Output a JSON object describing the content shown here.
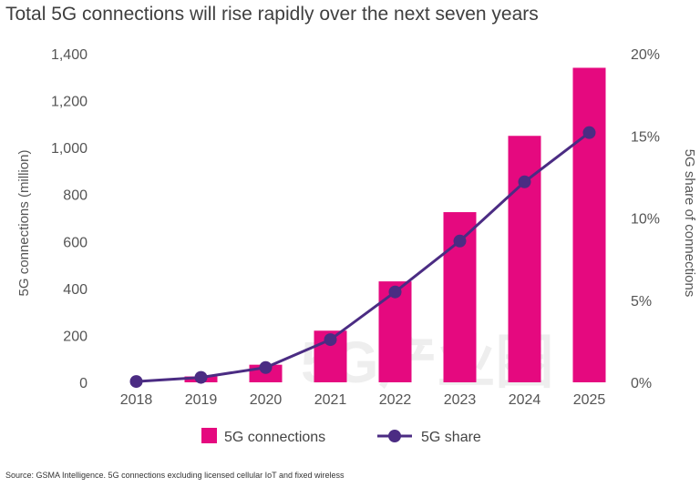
{
  "title": "Total 5G connections will rise rapidly over the next seven years",
  "source": "Source: GSMA Intelligence. 5G connections excluding licensed cellular IoT and fixed wireless",
  "watermark": "5G产业圈",
  "colors": {
    "bars": "#e5097f",
    "line": "#4b2c83",
    "text": "#555555"
  },
  "chart_data": {
    "type": "bar",
    "categories": [
      "2018",
      "2019",
      "2020",
      "2021",
      "2022",
      "2023",
      "2024",
      "2025"
    ],
    "y_ticks": [
      "0",
      "200",
      "400",
      "600",
      "800",
      "1,000",
      "1,200",
      "1,400"
    ],
    "y2_ticks": [
      "0%",
      "5%",
      "10%",
      "15%",
      "20%"
    ],
    "ylabel": "5G connections (million)",
    "y2label": "5G share of connections",
    "ylim": [
      0,
      1400
    ],
    "y2lim": [
      0,
      20
    ],
    "series": [
      {
        "name": "5G connections",
        "type": "bar",
        "axis": "left",
        "values": [
          0,
          25,
          75,
          220,
          430,
          725,
          1050,
          1340
        ]
      },
      {
        "name": "5G share",
        "type": "line",
        "axis": "right",
        "values": [
          0.05,
          0.3,
          0.9,
          2.6,
          5.5,
          8.6,
          12.2,
          15.2
        ]
      }
    ],
    "legend_position": "bottom",
    "grid": false
  }
}
